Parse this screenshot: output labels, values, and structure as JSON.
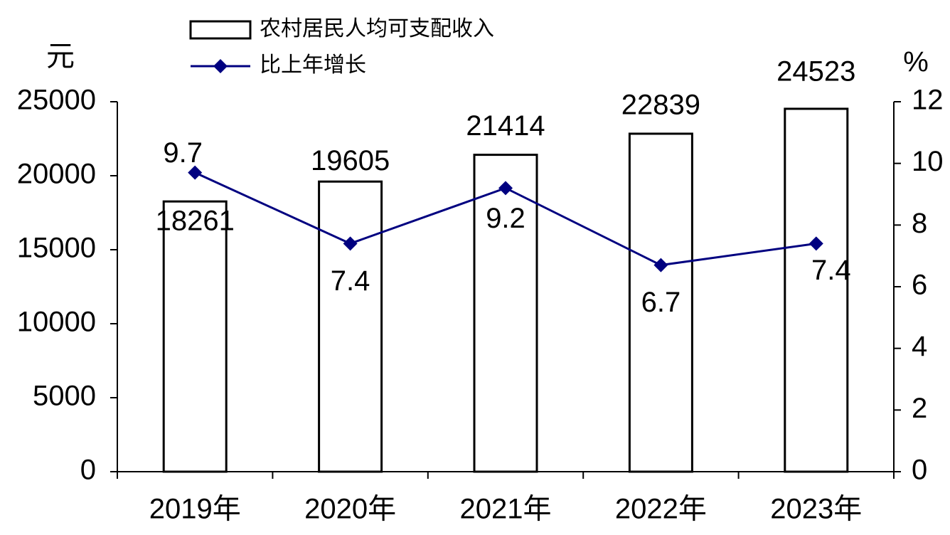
{
  "chart_data": {
    "type": "bar",
    "categories": [
      "2019年",
      "2020年",
      "2021年",
      "2022年",
      "2023年"
    ],
    "y_label": "元",
    "y2_label": "%",
    "ylim": [
      0,
      25000
    ],
    "yticks": [
      0,
      5000,
      10000,
      15000,
      20000,
      25000
    ],
    "y2lim": [
      0,
      12
    ],
    "y2ticks": [
      0,
      2,
      4,
      6,
      8,
      10,
      12
    ],
    "grid": false,
    "series": [
      {
        "name": "农村居民人均可支配收入",
        "type": "bar",
        "color": "#ffffff",
        "values": [
          18261,
          19605,
          21414,
          22839,
          24523
        ]
      },
      {
        "name": "比上年增长",
        "type": "line",
        "axis": "y2",
        "color": "#000080",
        "values": [
          9.7,
          7.4,
          9.2,
          6.7,
          7.4
        ]
      }
    ]
  }
}
